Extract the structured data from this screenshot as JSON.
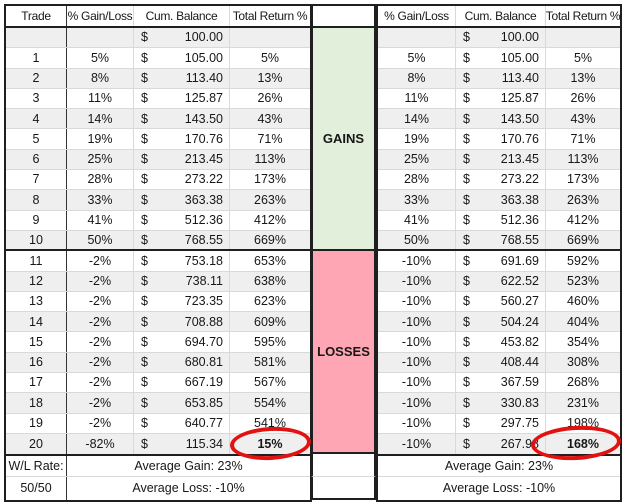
{
  "columns": {
    "trade": "Trade",
    "gain_loss": "% Gain/Loss",
    "cum_balance": "Cum. Balance",
    "total_return": "Total Return %"
  },
  "currency_symbol": "$",
  "start_balance": "100.00",
  "sections": {
    "gains_label": "GAINS",
    "losses_label": "LOSSES"
  },
  "left_table": {
    "rows": [
      {
        "trade": "1",
        "gain": "5%",
        "balance": "105.00",
        "total": "5%"
      },
      {
        "trade": "2",
        "gain": "8%",
        "balance": "113.40",
        "total": "13%"
      },
      {
        "trade": "3",
        "gain": "11%",
        "balance": "125.87",
        "total": "26%"
      },
      {
        "trade": "4",
        "gain": "14%",
        "balance": "143.50",
        "total": "43%"
      },
      {
        "trade": "5",
        "gain": "19%",
        "balance": "170.76",
        "total": "71%"
      },
      {
        "trade": "6",
        "gain": "25%",
        "balance": "213.45",
        "total": "113%"
      },
      {
        "trade": "7",
        "gain": "28%",
        "balance": "273.22",
        "total": "173%"
      },
      {
        "trade": "8",
        "gain": "33%",
        "balance": "363.38",
        "total": "263%"
      },
      {
        "trade": "9",
        "gain": "41%",
        "balance": "512.36",
        "total": "412%"
      },
      {
        "trade": "10",
        "gain": "50%",
        "balance": "768.55",
        "total": "669%"
      },
      {
        "trade": "11",
        "gain": "-2%",
        "balance": "753.18",
        "total": "653%"
      },
      {
        "trade": "12",
        "gain": "-2%",
        "balance": "738.11",
        "total": "638%"
      },
      {
        "trade": "13",
        "gain": "-2%",
        "balance": "723.35",
        "total": "623%"
      },
      {
        "trade": "14",
        "gain": "-2%",
        "balance": "708.88",
        "total": "609%"
      },
      {
        "trade": "15",
        "gain": "-2%",
        "balance": "694.70",
        "total": "595%"
      },
      {
        "trade": "16",
        "gain": "-2%",
        "balance": "680.81",
        "total": "581%"
      },
      {
        "trade": "17",
        "gain": "-2%",
        "balance": "667.19",
        "total": "567%"
      },
      {
        "trade": "18",
        "gain": "-2%",
        "balance": "653.85",
        "total": "554%"
      },
      {
        "trade": "19",
        "gain": "-2%",
        "balance": "640.77",
        "total": "541%"
      },
      {
        "trade": "20",
        "gain": "-82%",
        "balance": "115.34",
        "total": "15%",
        "circled": true
      }
    ],
    "summary": [
      {
        "label": "W/L Rate:",
        "value": "Average Gain: 23%"
      },
      {
        "label": "50/50",
        "value": "Average Loss: -10%"
      }
    ]
  },
  "right_table": {
    "rows": [
      {
        "gain": "5%",
        "balance": "105.00",
        "total": "5%"
      },
      {
        "gain": "8%",
        "balance": "113.40",
        "total": "13%"
      },
      {
        "gain": "11%",
        "balance": "125.87",
        "total": "26%"
      },
      {
        "gain": "14%",
        "balance": "143.50",
        "total": "43%"
      },
      {
        "gain": "19%",
        "balance": "170.76",
        "total": "71%"
      },
      {
        "gain": "25%",
        "balance": "213.45",
        "total": "113%"
      },
      {
        "gain": "28%",
        "balance": "273.22",
        "total": "173%"
      },
      {
        "gain": "33%",
        "balance": "363.38",
        "total": "263%"
      },
      {
        "gain": "41%",
        "balance": "512.36",
        "total": "412%"
      },
      {
        "gain": "50%",
        "balance": "768.55",
        "total": "669%"
      },
      {
        "gain": "-10%",
        "balance": "691.69",
        "total": "592%"
      },
      {
        "gain": "-10%",
        "balance": "622.52",
        "total": "523%"
      },
      {
        "gain": "-10%",
        "balance": "560.27",
        "total": "460%"
      },
      {
        "gain": "-10%",
        "balance": "504.24",
        "total": "404%"
      },
      {
        "gain": "-10%",
        "balance": "453.82",
        "total": "354%"
      },
      {
        "gain": "-10%",
        "balance": "408.44",
        "total": "308%"
      },
      {
        "gain": "-10%",
        "balance": "367.59",
        "total": "268%"
      },
      {
        "gain": "-10%",
        "balance": "330.83",
        "total": "231%"
      },
      {
        "gain": "-10%",
        "balance": "297.75",
        "total": "198%"
      },
      {
        "gain": "-10%",
        "balance": "267.98",
        "total": "168%",
        "circled": true
      }
    ],
    "summary": [
      {
        "value": "Average Gain: 23%"
      },
      {
        "value": "Average Loss: -10%"
      }
    ]
  },
  "colors": {
    "gains_bg": "#e2efda",
    "losses_bg": "#ffa6b4",
    "circle": "#e01212",
    "stripe": "#efefef",
    "thick_border": "#1f1f1f",
    "grid_line": "#d9d9d9"
  }
}
